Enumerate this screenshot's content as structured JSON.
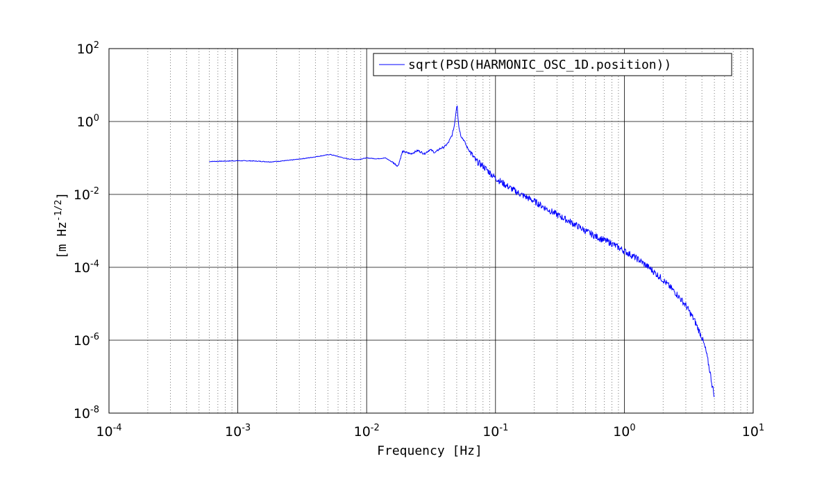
{
  "chart_data": {
    "type": "line",
    "xscale": "log",
    "yscale": "log",
    "xlim": [
      0.0001,
      10
    ],
    "ylim": [
      1e-08,
      100
    ],
    "xlabel": "Frequency   [Hz]",
    "ylabel": "[m Hz^-1/2]",
    "ylabel_parts": {
      "main": "[m Hz",
      "sup": "-1/2",
      "end": "]"
    },
    "x_ticks": [
      {
        "value": 0.0001,
        "base": "10",
        "exp": "-4"
      },
      {
        "value": 0.001,
        "base": "10",
        "exp": "-3"
      },
      {
        "value": 0.01,
        "base": "10",
        "exp": "-2"
      },
      {
        "value": 0.1,
        "base": "10",
        "exp": "-1"
      },
      {
        "value": 1,
        "base": "10",
        "exp": "0"
      },
      {
        "value": 10,
        "base": "10",
        "exp": "1"
      }
    ],
    "y_ticks": [
      {
        "value": 1e-08,
        "base": "10",
        "exp": "-8"
      },
      {
        "value": 1e-06,
        "base": "10",
        "exp": "-6"
      },
      {
        "value": 0.0001,
        "base": "10",
        "exp": "-4"
      },
      {
        "value": 0.01,
        "base": "10",
        "exp": "-2"
      },
      {
        "value": 1,
        "base": "10",
        "exp": "0"
      },
      {
        "value": 100,
        "base": "10",
        "exp": "2"
      }
    ],
    "grid": true,
    "minor_grid_x": true,
    "legend_position": "top-right",
    "series": [
      {
        "name": "sqrt(PSD(HARMONIC_OSC_1D.position))",
        "color": "#0000ff",
        "x": [
          0.0006,
          0.0008,
          0.001,
          0.0013,
          0.0018,
          0.0025,
          0.0035,
          0.0045,
          0.0052,
          0.006,
          0.007,
          0.0085,
          0.01,
          0.012,
          0.014,
          0.016,
          0.0175,
          0.019,
          0.022,
          0.025,
          0.028,
          0.031,
          0.034,
          0.037,
          0.04,
          0.043,
          0.046,
          0.048,
          0.049,
          0.05,
          0.0505,
          0.051,
          0.052,
          0.054,
          0.057,
          0.06,
          0.065,
          0.07,
          0.08,
          0.09,
          0.1,
          0.12,
          0.15,
          0.2,
          0.25,
          0.3,
          0.4,
          0.5,
          0.6,
          0.8,
          1,
          1.3,
          1.6,
          2,
          2.5,
          3,
          3.5,
          4,
          4.3,
          4.6,
          4.8,
          5
        ],
        "y": [
          0.08,
          0.082,
          0.084,
          0.083,
          0.078,
          0.086,
          0.1,
          0.115,
          0.125,
          0.11,
          0.095,
          0.09,
          0.1,
          0.095,
          0.1,
          0.075,
          0.06,
          0.15,
          0.13,
          0.16,
          0.13,
          0.17,
          0.14,
          0.18,
          0.2,
          0.26,
          0.42,
          0.8,
          1.5,
          2.6,
          2.8,
          1.5,
          0.7,
          0.4,
          0.3,
          0.2,
          0.13,
          0.085,
          0.06,
          0.04,
          0.028,
          0.018,
          0.011,
          0.0065,
          0.004,
          0.0028,
          0.0016,
          0.001,
          0.0007,
          0.00045,
          0.00028,
          0.00016,
          9e-05,
          4.5e-05,
          2e-05,
          9e-06,
          3.5e-06,
          1.2e-06,
          5e-07,
          1.5e-07,
          6e-08,
          3e-08
        ]
      }
    ]
  }
}
